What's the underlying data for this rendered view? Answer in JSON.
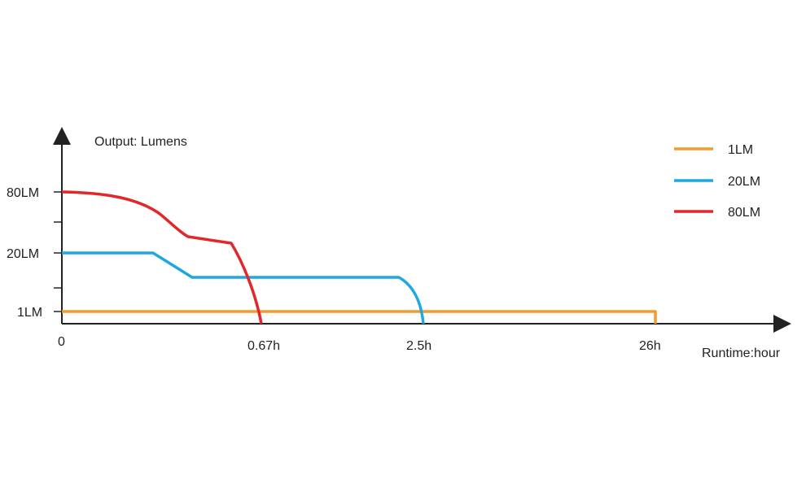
{
  "chart_data": {
    "type": "line",
    "ylabel": "Output: Lumens",
    "xlabel": "Runtime:hour",
    "x_ticks": [
      "0",
      "0.67h",
      "2.5h",
      "26h"
    ],
    "y_ticks": [
      "1LM",
      "20LM",
      "80LM"
    ],
    "series": [
      {
        "name": "1LM",
        "color": "#f39a2e",
        "runtime": "26h",
        "level": "1LM"
      },
      {
        "name": "20LM",
        "color": "#1fa8e0",
        "runtime": "2.5h",
        "level": "20LM"
      },
      {
        "name": "80LM",
        "color": "#e3262a",
        "runtime": "0.67h",
        "level": "80LM"
      }
    ],
    "legend_position": "top-right",
    "grid": false
  }
}
